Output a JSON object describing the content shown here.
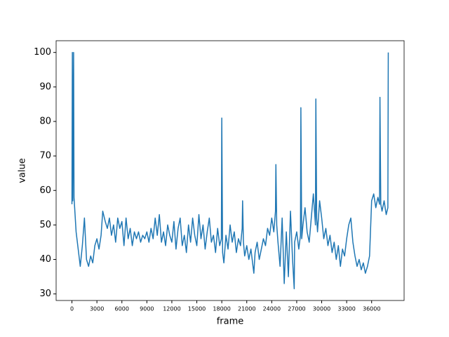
{
  "chart_data": {
    "type": "line",
    "x_label": "frame",
    "y_label": "value",
    "x": [
      0,
      50,
      100,
      200,
      250,
      300,
      500,
      750,
      1000,
      1250,
      1500,
      1750,
      2000,
      2250,
      2500,
      2750,
      3000,
      3250,
      3500,
      3700,
      4000,
      4250,
      4500,
      4750,
      5000,
      5250,
      5500,
      5750,
      6000,
      6250,
      6500,
      6750,
      7000,
      7250,
      7500,
      7750,
      8000,
      8250,
      8500,
      8750,
      9000,
      9250,
      9500,
      9750,
      10000,
      10250,
      10500,
      10750,
      11000,
      11250,
      11500,
      11750,
      12000,
      12250,
      12500,
      12750,
      13000,
      13250,
      13500,
      13750,
      14000,
      14250,
      14500,
      14750,
      15000,
      15250,
      15500,
      15750,
      16000,
      16250,
      16500,
      16750,
      17000,
      17250,
      17500,
      17750,
      17950,
      18000,
      18100,
      18250,
      18500,
      18750,
      19000,
      19250,
      19500,
      19750,
      20000,
      20250,
      20450,
      20500,
      20600,
      20750,
      21000,
      21250,
      21500,
      21750,
      21850,
      22000,
      22250,
      22500,
      22750,
      23000,
      23250,
      23500,
      23750,
      24000,
      24250,
      24450,
      24500,
      24600,
      24750,
      25000,
      25250,
      25500,
      25750,
      26000,
      26250,
      26500,
      26700,
      26750,
      27000,
      27250,
      27450,
      27500,
      27600,
      27750,
      28000,
      28250,
      28500,
      28750,
      29000,
      29250,
      29300,
      29400,
      29500,
      29750,
      30000,
      30250,
      30500,
      30750,
      31000,
      31250,
      31500,
      31750,
      32000,
      32250,
      32500,
      32750,
      33000,
      33250,
      33500,
      33750,
      34000,
      34250,
      34500,
      34750,
      35000,
      35250,
      35500,
      35750,
      36000,
      36250,
      36500,
      36750,
      36950,
      37000,
      37100,
      37250,
      37500,
      37750,
      37950,
      38000
    ],
    "series": [
      {
        "color": "#1f77b4",
        "values": [
          56,
          100,
          57,
          100,
          58,
          56,
          48,
          43,
          38,
          44,
          52,
          40,
          38,
          41,
          39,
          44,
          46,
          43,
          47,
          54,
          51,
          49,
          52,
          47,
          50,
          45,
          52,
          49,
          51,
          44,
          52,
          46,
          49,
          44,
          48,
          46,
          48,
          45,
          47,
          46,
          48,
          45,
          49,
          46,
          52,
          47,
          53,
          45,
          48,
          44,
          50,
          47,
          45,
          51,
          43,
          49,
          52,
          44,
          47,
          42,
          50,
          45,
          52,
          47,
          44,
          53,
          46,
          50,
          43,
          48,
          52,
          45,
          47,
          42,
          49,
          44,
          46,
          81,
          42,
          39,
          47,
          43,
          50,
          45,
          48,
          42,
          46,
          44,
          49,
          57,
          45,
          41,
          44,
          40,
          43,
          38,
          36,
          42,
          45,
          40,
          43,
          46,
          44,
          49,
          47,
          52,
          48,
          54,
          67.5,
          50,
          45,
          38,
          52,
          33,
          48,
          35,
          54,
          40,
          31.5,
          45,
          48,
          43,
          47,
          84,
          46,
          50,
          55,
          48,
          45,
          52,
          59,
          50,
          86.5,
          52,
          48,
          57,
          52,
          46,
          49,
          44,
          47,
          42,
          45,
          40,
          44,
          38,
          43,
          41,
          46,
          50,
          52,
          45,
          41,
          38,
          40,
          37,
          39,
          36,
          38,
          41,
          57,
          59,
          55,
          58,
          56,
          87,
          56,
          54,
          57,
          53,
          55,
          100
        ]
      }
    ],
    "xlim": [
      -1900,
      39900
    ],
    "ylim": [
      28.1,
      103.4
    ],
    "xticks": [
      0,
      3000,
      6000,
      9000,
      12000,
      15000,
      18000,
      21000,
      24000,
      27000,
      30000,
      33000,
      36000
    ],
    "yticks": [
      30,
      40,
      50,
      60,
      70,
      80,
      90,
      100
    ]
  }
}
